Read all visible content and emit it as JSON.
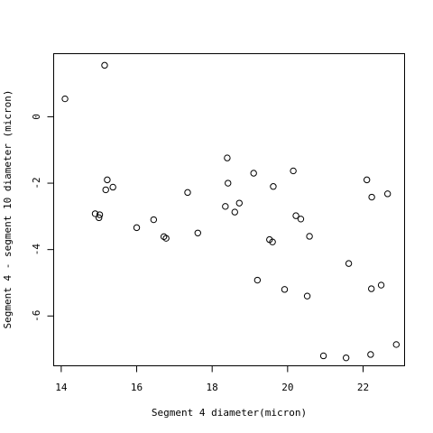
{
  "chart_data": {
    "type": "scatter",
    "title": "",
    "xlabel": "Segment 4 diameter(micron)",
    "ylabel": "Segment 4 - segment 10 diameter (micron)",
    "xlim": [
      13.8,
      23.1
    ],
    "ylim": [
      -7.5,
      1.9
    ],
    "xticks": [
      14,
      16,
      18,
      20,
      22
    ],
    "xtick_labels": [
      "14",
      "16",
      "18",
      "20",
      "22"
    ],
    "yticks": [
      0,
      -2,
      -4,
      -6
    ],
    "ytick_labels": [
      "0",
      "-2",
      "-4",
      "-6"
    ],
    "grid": false,
    "marker": "open-circle",
    "points": [
      {
        "x": 14.1,
        "y": 0.54
      },
      {
        "x": 15.15,
        "y": 1.55
      },
      {
        "x": 14.9,
        "y": -2.92
      },
      {
        "x": 15.0,
        "y": -3.04
      },
      {
        "x": 15.02,
        "y": -2.95
      },
      {
        "x": 15.18,
        "y": -2.2
      },
      {
        "x": 15.22,
        "y": -1.9
      },
      {
        "x": 15.37,
        "y": -2.12
      },
      {
        "x": 16.0,
        "y": -3.34
      },
      {
        "x": 16.45,
        "y": -3.1
      },
      {
        "x": 16.72,
        "y": -3.61
      },
      {
        "x": 16.78,
        "y": -3.66
      },
      {
        "x": 17.35,
        "y": -2.28
      },
      {
        "x": 17.62,
        "y": -3.5
      },
      {
        "x": 18.35,
        "y": -2.7
      },
      {
        "x": 18.4,
        "y": -1.24
      },
      {
        "x": 18.42,
        "y": -2.0
      },
      {
        "x": 18.6,
        "y": -2.87
      },
      {
        "x": 18.72,
        "y": -2.6
      },
      {
        "x": 19.1,
        "y": -1.7
      },
      {
        "x": 19.2,
        "y": -4.92
      },
      {
        "x": 19.52,
        "y": -3.7
      },
      {
        "x": 19.6,
        "y": -3.77
      },
      {
        "x": 19.62,
        "y": -2.1
      },
      {
        "x": 19.92,
        "y": -5.2
      },
      {
        "x": 20.15,
        "y": -1.63
      },
      {
        "x": 20.22,
        "y": -2.98
      },
      {
        "x": 20.35,
        "y": -3.08
      },
      {
        "x": 20.52,
        "y": -5.4
      },
      {
        "x": 20.58,
        "y": -3.6
      },
      {
        "x": 20.95,
        "y": -7.2
      },
      {
        "x": 21.55,
        "y": -7.26
      },
      {
        "x": 21.62,
        "y": -4.42
      },
      {
        "x": 22.1,
        "y": -1.9
      },
      {
        "x": 22.2,
        "y": -7.16
      },
      {
        "x": 22.22,
        "y": -5.18
      },
      {
        "x": 22.23,
        "y": -2.42
      },
      {
        "x": 22.48,
        "y": -5.07
      },
      {
        "x": 22.65,
        "y": -2.32
      },
      {
        "x": 22.88,
        "y": -6.86
      }
    ]
  }
}
